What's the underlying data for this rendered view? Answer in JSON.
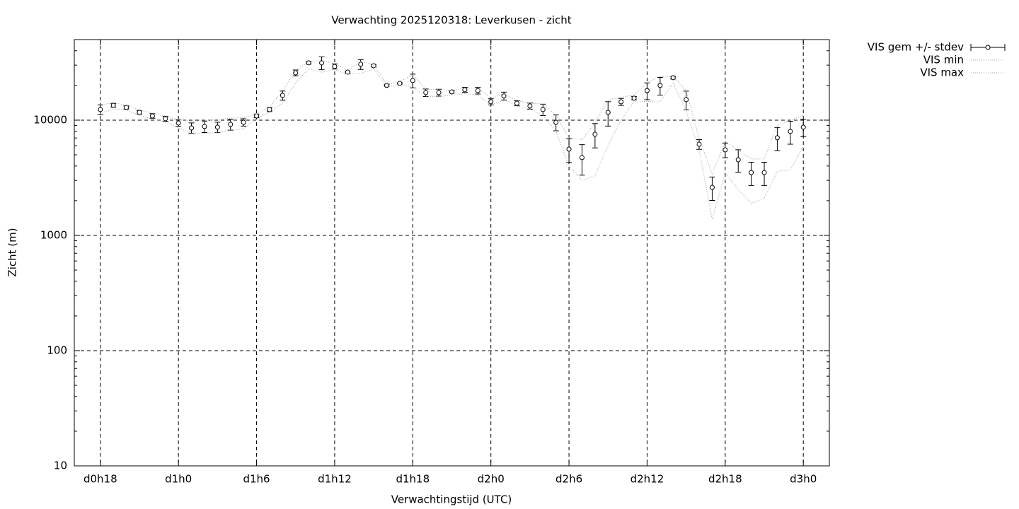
{
  "chart_data": {
    "type": "errorbar",
    "title": "Verwachting 2025120318: Leverkusen - zicht",
    "x_label": "Verwachtingstijd (UTC)",
    "y_label": "Zicht (m)",
    "y_log": true,
    "grid": true,
    "legend": "top-right",
    "xlim": [
      16,
      74
    ],
    "ylim": [
      10,
      50000
    ],
    "xticks": [
      {
        "value": 18,
        "label": "d0h18"
      },
      {
        "value": 24,
        "label": "d1h0"
      },
      {
        "value": 30,
        "label": "d1h6"
      },
      {
        "value": 36,
        "label": "d1h12"
      },
      {
        "value": 42,
        "label": "d1h18"
      },
      {
        "value": 48,
        "label": "d2h0"
      },
      {
        "value": 54,
        "label": "d2h6"
      },
      {
        "value": 60,
        "label": "d2h12"
      },
      {
        "value": 66,
        "label": "d2h18"
      },
      {
        "value": 72,
        "label": "d3h0"
      }
    ],
    "yticks": [
      10,
      100,
      1000,
      10000
    ],
    "x": [
      18,
      19,
      20,
      21,
      22,
      23,
      24,
      25,
      26,
      27,
      28,
      29,
      30,
      31,
      32,
      33,
      34,
      35,
      36,
      37,
      38,
      39,
      40,
      41,
      42,
      43,
      44,
      45,
      46,
      47,
      48,
      49,
      50,
      51,
      52,
      53,
      54,
      55,
      56,
      57,
      58,
      59,
      60,
      61,
      62,
      63,
      64,
      65,
      66,
      67,
      68,
      69,
      70,
      71,
      72
    ],
    "series": [
      {
        "name": "VIS gem +/- stdev",
        "color": "#000000",
        "values": [
          12360,
          13450,
          12890,
          11680,
          10880,
          10290,
          9450,
          8560,
          8810,
          8690,
          9190,
          9580,
          10880,
          12360,
          16400,
          25750,
          31400,
          31400,
          29250,
          26100,
          30540,
          29670,
          19990,
          20840,
          22060,
          17350,
          17350,
          17580,
          18340,
          18050,
          14430,
          16180,
          14030,
          13270,
          12360,
          9580,
          5600,
          4730,
          7540,
          11680,
          14430,
          15500,
          18050,
          19990,
          23350,
          15060,
          6180,
          2610,
          5520,
          4530,
          3510,
          3510,
          7030,
          7980,
          8690
        ],
        "errors": [
          1200,
          500,
          400,
          400,
          500,
          500,
          600,
          900,
          1000,
          900,
          1000,
          700,
          400,
          500,
          1500,
          1500,
          800,
          4000,
          1500,
          500,
          3000,
          800,
          300,
          300,
          3000,
          1300,
          1200,
          400,
          900,
          1200,
          900,
          1300,
          700,
          800,
          1400,
          1500,
          1300,
          1400,
          1800,
          2800,
          1000,
          500,
          3000,
          3500,
          600,
          2800,
          600,
          600,
          800,
          1000,
          800,
          800,
          1600,
          1800,
          1500
        ]
      },
      {
        "name": "VIS min",
        "color": "#a0a0a0",
        "values": [
          11500,
          12500,
          12200,
          11000,
          10200,
          9700,
          8500,
          7700,
          7700,
          7800,
          8200,
          8400,
          10400,
          11700,
          14000,
          21000,
          28000,
          26000,
          27500,
          25000,
          25500,
          28000,
          19500,
          20000,
          19500,
          16000,
          16000,
          16500,
          17000,
          16500,
          13500,
          15000,
          13300,
          12500,
          11000,
          8000,
          4000,
          3000,
          3300,
          6000,
          10000,
          14500,
          14500,
          14500,
          21000,
          12000,
          5500,
          1380,
          3500,
          2500,
          1900,
          2100,
          3600,
          3700,
          6000
        ]
      },
      {
        "name": "VIS max",
        "color": "#a0a0a0",
        "values": [
          13500,
          14200,
          13500,
          12300,
          11500,
          10800,
          10100,
          9800,
          9900,
          10100,
          10400,
          10500,
          11300,
          13000,
          18000,
          27000,
          32000,
          33000,
          31000,
          27000,
          32000,
          30500,
          20500,
          21500,
          25000,
          18500,
          18500,
          18000,
          19000,
          19000,
          15500,
          17000,
          14800,
          14000,
          13800,
          11000,
          7000,
          6800,
          9500,
          15000,
          15800,
          16500,
          21000,
          24000,
          24000,
          18000,
          7000,
          3400,
          6500,
          5500,
          4600,
          4600,
          9000,
          10000,
          11000
        ]
      }
    ]
  }
}
